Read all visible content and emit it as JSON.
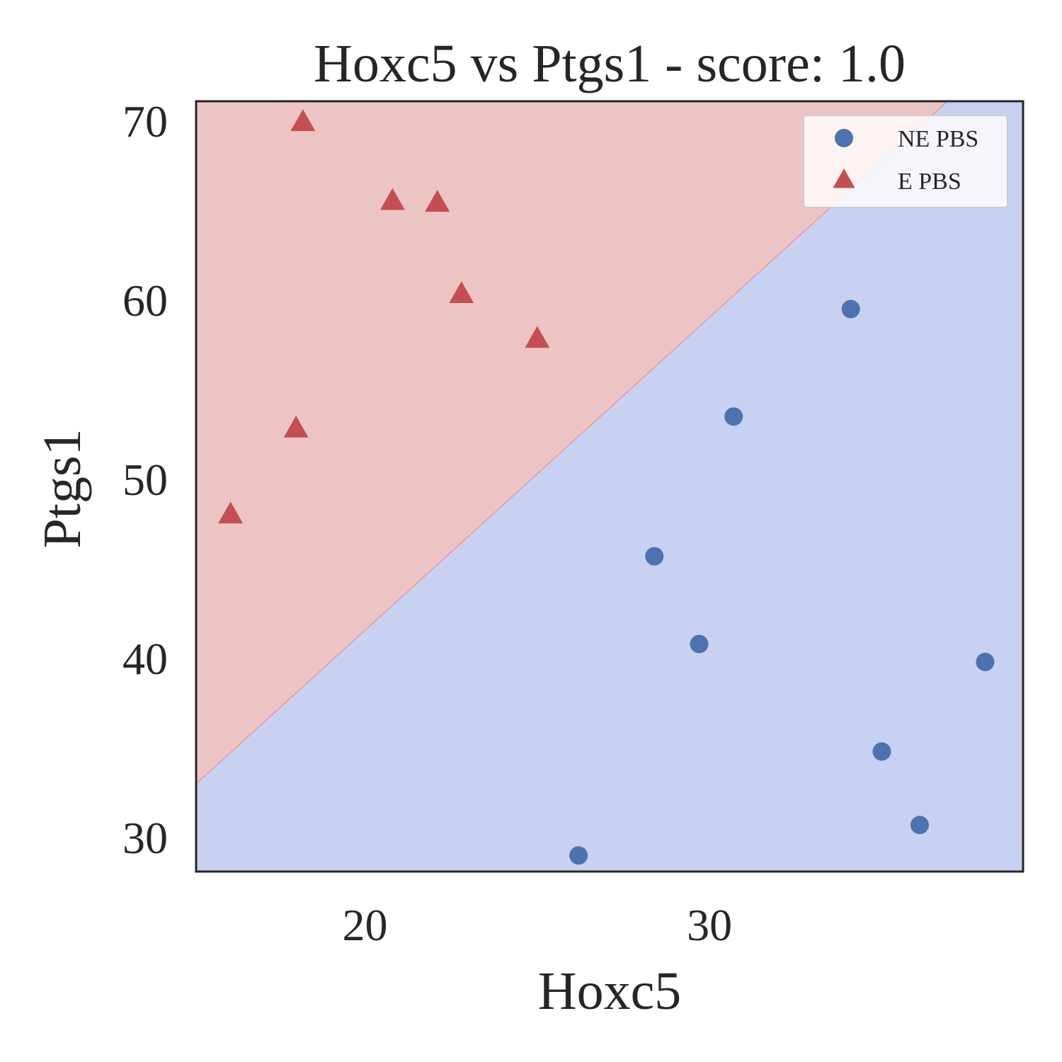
{
  "chart_data": {
    "type": "scatter",
    "title": "Hoxc5 vs Ptgs1 - score: 1.0",
    "xlabel": "Hoxc5",
    "ylabel": "Ptgs1",
    "xlim": [
      15.1,
      39.1
    ],
    "ylim": [
      28.1,
      71.1
    ],
    "xticks": [
      20,
      30
    ],
    "xtick_labels": [
      "20",
      "30"
    ],
    "yticks": [
      30,
      40,
      50,
      60,
      70
    ],
    "ytick_labels": [
      "30",
      "40",
      "50",
      "60",
      "70"
    ],
    "grid": false,
    "legend_position": "top-right",
    "decision_boundary": {
      "points": [
        [
          15.1,
          33.0
        ],
        [
          36.9,
          71.1
        ]
      ],
      "regions": [
        {
          "class": "E PBS",
          "side": "upper-left",
          "color": "#edc4c4"
        },
        {
          "class": "NE PBS",
          "side": "lower-right",
          "color": "#c8d1f1"
        }
      ]
    },
    "series": [
      {
        "name": "NE PBS",
        "marker": "circle",
        "color": "#4c72b0",
        "x": [
          26.2,
          28.4,
          29.7,
          30.7,
          34.1,
          35.0,
          36.1,
          38.0
        ],
        "y": [
          29.0,
          45.7,
          40.8,
          53.5,
          59.5,
          34.8,
          30.7,
          39.8
        ]
      },
      {
        "name": "E PBS",
        "marker": "triangle",
        "color": "#c44e52",
        "x": [
          16.1,
          18.0,
          18.2,
          20.8,
          22.1,
          22.8,
          25.0
        ],
        "y": [
          48.0,
          52.8,
          69.9,
          65.5,
          65.4,
          60.3,
          57.8
        ]
      }
    ]
  }
}
